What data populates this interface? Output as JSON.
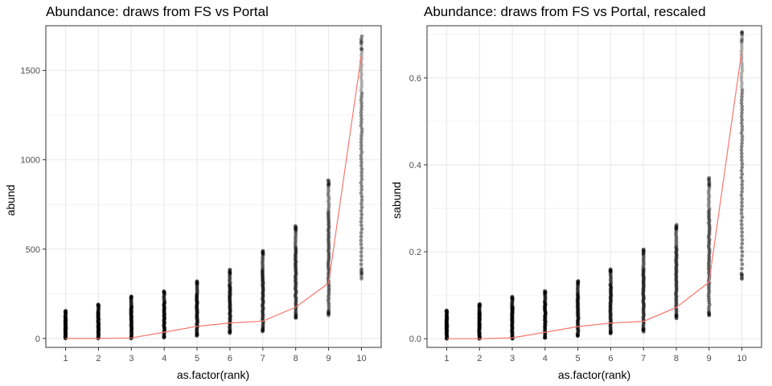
{
  "chart_data": [
    {
      "type": "scatter",
      "title": "Abundance: draws from FS vs Portal",
      "xlabel": "as.factor(rank)",
      "ylabel": "abund",
      "categories": [
        "1",
        "2",
        "3",
        "4",
        "5",
        "6",
        "7",
        "8",
        "9",
        "10"
      ],
      "ylim": [
        -50,
        1750
      ],
      "yticks": [
        0,
        500,
        1000,
        1500
      ],
      "ytick_labels": [
        "0",
        "500",
        "1000",
        "1500"
      ],
      "grid": true,
      "colors": {
        "points": "#000000",
        "line": "#f8766d",
        "grid": "#ebebeb",
        "panel_border": "#333333"
      },
      "series": [
        {
          "kind": "points",
          "ranges": [
            [
              0,
              155
            ],
            [
              0,
              190
            ],
            [
              0,
              235
            ],
            [
              5,
              265
            ],
            [
              15,
              320
            ],
            [
              30,
              385
            ],
            [
              40,
              490
            ],
            [
              115,
              630
            ],
            [
              130,
              885
            ],
            [
              335,
              1690
            ]
          ]
        },
        {
          "kind": "line",
          "values": [
            0,
            0,
            3,
            35,
            68,
            87,
            97,
            175,
            310,
            1590
          ]
        }
      ]
    },
    {
      "type": "scatter",
      "title": "Abundance: draws from FS vs Portal, rescaled",
      "xlabel": "as.factor(rank)",
      "ylabel": "sabund",
      "categories": [
        "1",
        "2",
        "3",
        "4",
        "5",
        "6",
        "7",
        "8",
        "9",
        "10"
      ],
      "ylim": [
        -0.02,
        0.72
      ],
      "yticks": [
        0.0,
        0.2,
        0.4,
        0.6
      ],
      "ytick_labels": [
        "0.0",
        "0.2",
        "0.4",
        "0.6"
      ],
      "grid": true,
      "colors": {
        "points": "#000000",
        "line": "#f8766d",
        "grid": "#ebebeb",
        "panel_border": "#333333"
      },
      "series": [
        {
          "kind": "points",
          "ranges": [
            [
              0,
              0.065
            ],
            [
              0,
              0.08
            ],
            [
              0,
              0.097
            ],
            [
              0.002,
              0.11
            ],
            [
              0.006,
              0.133
            ],
            [
              0.012,
              0.16
            ],
            [
              0.016,
              0.205
            ],
            [
              0.047,
              0.262
            ],
            [
              0.054,
              0.37
            ],
            [
              0.138,
              0.705
            ]
          ]
        },
        {
          "kind": "line",
          "values": [
            0,
            0,
            0.002,
            0.015,
            0.028,
            0.036,
            0.04,
            0.072,
            0.13,
            0.664
          ]
        }
      ]
    }
  ]
}
